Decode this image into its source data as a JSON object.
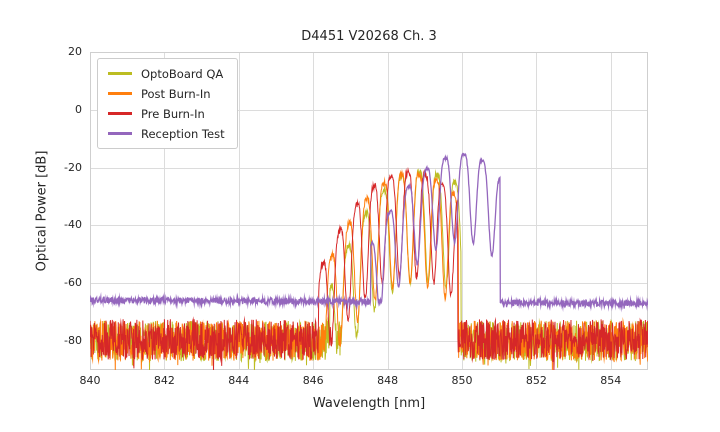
{
  "chart_data": {
    "type": "line",
    "title": "D4451 V20268 Ch. 3",
    "xlabel": "Wavelength [nm]",
    "ylabel": "Optical Power [dB]",
    "xlim": [
      840,
      855
    ],
    "ylim": [
      -90,
      20
    ],
    "xticks": [
      840,
      842,
      844,
      846,
      848,
      850,
      852,
      854
    ],
    "yticks": [
      20,
      0,
      -20,
      -40,
      -60,
      -80
    ],
    "grid": true,
    "legend_position": "upper left",
    "points_per_nm": 100,
    "series": [
      {
        "name": "OptoBoard QA",
        "color": "#bcbd22",
        "line_width": 1,
        "noise_floor": -76,
        "noise_span": 14,
        "spike_prob": 0.05,
        "spike_size": 6,
        "jitter": 2,
        "signal": {
          "start": 846.45,
          "end": 849.97,
          "peak_wl": 848.85,
          "peak_db": -21.5,
          "mode_spacing": 0.48,
          "mode_phase": 848.85,
          "mode_depth": 38,
          "rise_curv": 7.0,
          "fall_curv": 4.0
        }
      },
      {
        "name": "Post Burn-In",
        "color": "#ff7f0e",
        "line_width": 1,
        "noise_floor": -76,
        "noise_span": 14,
        "spike_prob": 0.05,
        "spike_size": 6,
        "jitter": 2,
        "signal": {
          "start": 846.25,
          "end": 849.9,
          "peak_wl": 848.6,
          "peak_db": -22,
          "mode_spacing": 0.47,
          "mode_phase": 848.37,
          "mode_depth": 38,
          "rise_curv": 6.5,
          "fall_curv": 5.0
        }
      },
      {
        "name": "Pre Burn-In",
        "color": "#d62728",
        "line_width": 1,
        "noise_floor": -75.5,
        "noise_span": 14,
        "spike_prob": 0.05,
        "spike_size": 6,
        "jitter": 2,
        "signal": {
          "start": 846.15,
          "end": 849.88,
          "peak_wl": 848.55,
          "peak_db": -21.5,
          "mode_spacing": 0.46,
          "mode_phase": 848.55,
          "mode_depth": 36,
          "rise_curv": 6.0,
          "fall_curv": 5.0
        }
      },
      {
        "name": "Reception Test",
        "color": "#9467bd",
        "line_width": 1.3,
        "noise_floor": -65.2,
        "noise_slope": -0.08,
        "noise_span": 2.2,
        "spike_prob": 0.02,
        "spike_size": 1.5,
        "jitter": 1,
        "signal": {
          "start": 847.55,
          "end": 851.02,
          "peak_wl": 850.05,
          "peak_db": -15.5,
          "mode_spacing": 0.5,
          "mode_phase": 850.05,
          "mode_depth": 30,
          "rise_curv": 5.0,
          "fall_curv": 9.0
        }
      }
    ]
  }
}
